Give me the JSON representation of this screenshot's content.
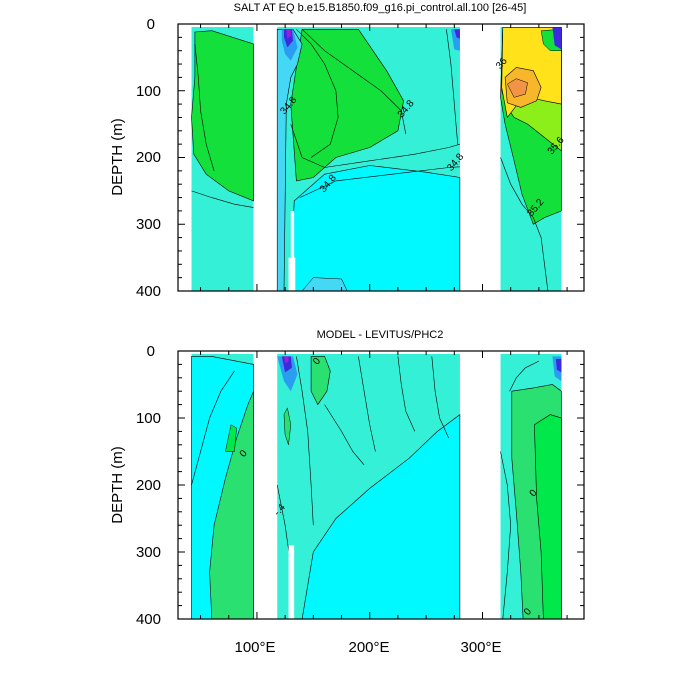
{
  "colors": {
    "ocean_base": "#33f0d6",
    "deep_cyan": "#00f8ff",
    "light_blue": "#45d8f5",
    "fresh_blue": "#2a9df0",
    "fresh_indigo": "#3d2ae0",
    "fresh_purple": "#9a1fd8",
    "salty_green": "#14e03c",
    "salty_lime": "#8cef1a",
    "salty_yellow": "#ffe21a",
    "salty_gold": "#f8b62b",
    "salty_orange": "#f29445",
    "diff_green": "#2ae070",
    "diff_bright": "#00e84a",
    "land": "#ffffff"
  },
  "chart_data": [
    {
      "type": "contour",
      "title": "SALT AT EQ b.e15.B1850.f09_g16.pi_control.all.100 [26-45]",
      "ylabel": "DEPTH (m)",
      "xlim": [
        30,
        390
      ],
      "ylim": [
        400,
        0
      ],
      "yticks": [
        "0",
        "100",
        "200",
        "300",
        "400"
      ],
      "xticks": [],
      "contour_labels": [
        {
          "text": "34.8",
          "x": 130,
          "y": 125
        },
        {
          "text": "34.8",
          "x": 165,
          "y": 242
        },
        {
          "text": "34.8",
          "x": 234,
          "y": 130
        },
        {
          "text": "34.8",
          "x": 278,
          "y": 210
        },
        {
          "text": "36",
          "x": 319,
          "y": 62
        },
        {
          "text": "35.6",
          "x": 367,
          "y": 185
        },
        {
          "text": "35.2",
          "x": 349,
          "y": 278
        }
      ]
    },
    {
      "type": "contour",
      "title": "MODEL - LEVITUS/PHC2",
      "ylabel": "DEPTH (m)",
      "xlim": [
        30,
        390
      ],
      "ylim": [
        400,
        0
      ],
      "yticks": [
        "0",
        "100",
        "200",
        "300",
        "400"
      ],
      "xticks": [
        "100°E",
        "200°E",
        "300°E"
      ],
      "contour_labels": [
        {
          "text": "0",
          "x": 155,
          "y": 18
        },
        {
          "text": "0",
          "x": 90,
          "y": 156
        },
        {
          "text": "-.4",
          "x": 122,
          "y": 240
        },
        {
          "text": "0",
          "x": 347,
          "y": 215
        },
        {
          "text": "0",
          "x": 342,
          "y": 392
        }
      ]
    }
  ]
}
